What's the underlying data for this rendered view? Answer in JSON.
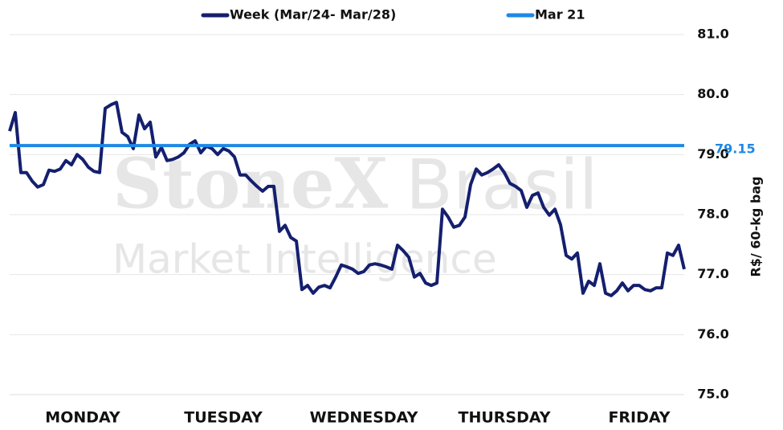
{
  "chart_data": {
    "type": "line",
    "watermark": [
      "StoneX",
      "Brasil",
      "Market Intelligence"
    ],
    "y_axis_label": "R$/ 60-kg bag",
    "ylim": [
      75,
      81
    ],
    "yticks": [
      {
        "value": 75,
        "label": "75.0"
      },
      {
        "value": 76,
        "label": "76.0"
      },
      {
        "value": 77,
        "label": "77.0"
      },
      {
        "value": 78,
        "label": "78.0"
      },
      {
        "value": 79,
        "label": "79.0"
      },
      {
        "value": 80,
        "label": "80.0"
      },
      {
        "value": 81,
        "label": "81.0"
      }
    ],
    "grid": true,
    "legend": "top",
    "categories": [
      null,
      null,
      null,
      null,
      null,
      null,
      null,
      null,
      null,
      null,
      null,
      null,
      null,
      "MONDAY",
      null,
      null,
      null,
      null,
      null,
      null,
      null,
      null,
      null,
      null,
      null,
      null,
      null,
      null,
      null,
      null,
      null,
      null,
      null,
      null,
      null,
      null,
      null,
      null,
      "TUESDAY",
      null,
      null,
      null,
      null,
      null,
      null,
      null,
      null,
      null,
      null,
      null,
      null,
      null,
      null,
      null,
      null,
      null,
      null,
      null,
      null,
      null,
      null,
      null,
      null,
      "WEDNESDAY",
      null,
      null,
      null,
      null,
      null,
      null,
      null,
      null,
      null,
      null,
      null,
      null,
      null,
      null,
      null,
      null,
      null,
      null,
      null,
      null,
      null,
      null,
      null,
      null,
      "THURSDAY",
      null,
      null,
      null,
      null,
      null,
      null,
      null,
      null,
      null,
      null,
      null,
      null,
      null,
      null,
      null,
      null,
      null,
      null,
      null,
      null,
      null,
      null,
      null,
      "FRIDAY",
      null,
      null,
      null,
      null,
      null,
      null,
      null,
      null
    ],
    "series": [
      {
        "name": "Week (Mar/24- Mar/28)",
        "color": "#141f6e",
        "values": [
          79.39,
          79.7,
          78.7,
          78.7,
          78.56,
          78.46,
          78.5,
          78.74,
          78.72,
          78.76,
          78.9,
          78.83,
          79.0,
          78.92,
          78.79,
          78.72,
          78.7,
          79.77,
          79.83,
          79.87,
          79.37,
          79.3,
          79.1,
          79.66,
          79.43,
          79.54,
          78.96,
          79.12,
          78.9,
          78.92,
          78.96,
          79.03,
          79.17,
          79.23,
          79.03,
          79.14,
          79.1,
          79.0,
          79.1,
          79.06,
          78.96,
          78.66,
          78.66,
          78.56,
          78.47,
          78.39,
          78.47,
          78.47,
          77.72,
          77.82,
          77.62,
          77.56,
          76.75,
          76.82,
          76.69,
          76.79,
          76.82,
          76.78,
          76.96,
          77.16,
          77.13,
          77.09,
          77.02,
          77.05,
          77.16,
          77.18,
          77.16,
          77.13,
          77.09,
          77.49,
          77.4,
          77.29,
          76.96,
          77.02,
          76.86,
          76.82,
          76.86,
          78.09,
          77.96,
          77.79,
          77.82,
          77.96,
          78.5,
          78.76,
          78.66,
          78.7,
          78.76,
          78.83,
          78.7,
          78.52,
          78.47,
          78.4,
          78.12,
          78.32,
          78.36,
          78.12,
          77.99,
          78.09,
          77.83,
          77.32,
          77.26,
          77.36,
          76.69,
          76.89,
          76.82,
          77.18,
          76.69,
          76.65,
          76.73,
          76.86,
          76.73,
          76.82,
          76.82,
          76.75,
          76.73,
          76.78,
          76.78,
          77.36,
          77.32,
          77.49,
          77.09
        ]
      },
      {
        "name": "Mar 21",
        "color": "#1e88e5",
        "reference": 79.15
      }
    ]
  }
}
